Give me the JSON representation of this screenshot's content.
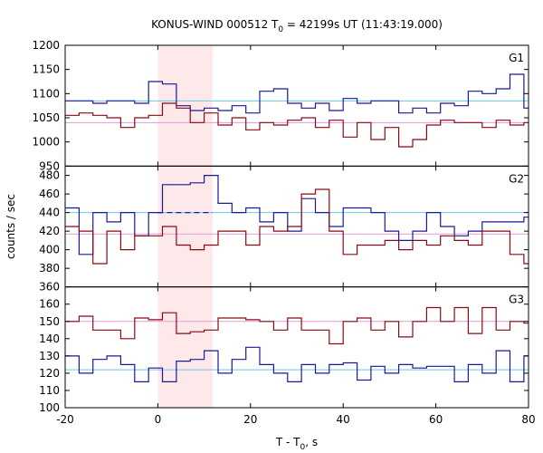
{
  "chart_data": {
    "type": "line",
    "title_main": "KONUS-WIND 000512 T",
    "title_sub": "0",
    "title_rest": " = 42199s UT (11:43:19.000)",
    "xlabel_main": "T - T",
    "xlabel_sub": "0",
    "xlabel_rest": ", s",
    "ylabel": "counts / sec",
    "xlim": [
      -20,
      80
    ],
    "xticks": [
      "-20",
      "0",
      "20",
      "40",
      "60",
      "80"
    ],
    "shaded_interval": [
      0,
      11.8
    ],
    "colors": {
      "bg_series": "#8b0a12",
      "src_series": "#1a1a9a",
      "bg_level": "#e69ad6",
      "src_level": "#6cc6e8",
      "shade": "#fde8ea"
    },
    "panels": [
      {
        "label": "G1",
        "ylim": [
          950,
          1200
        ],
        "yticks": [
          "950",
          "1000",
          "1050",
          "1100",
          "1150",
          "1200"
        ],
        "blue_level": 1085,
        "pink_level": 1040,
        "x_edges": [
          -20,
          -17,
          -14,
          -11,
          -8,
          -5,
          -2,
          1,
          4,
          7,
          10,
          13,
          16,
          19,
          22,
          25,
          28,
          31,
          34,
          37,
          40,
          43,
          46,
          49,
          52,
          55,
          58,
          61,
          64,
          67,
          70,
          73,
          76,
          79,
          80
        ],
        "series": [
          {
            "name": "",
            "color": "#1a1a9a",
            "values": [
              1085,
              1085,
              1080,
              1085,
              1085,
              1080,
              1125,
              1120,
              1075,
              1065,
              1070,
              1065,
              1075,
              1060,
              1105,
              1110,
              1080,
              1070,
              1080,
              1065,
              1090,
              1080,
              1085,
              1085,
              1060,
              1070,
              1060,
              1080,
              1075,
              1105,
              1100,
              1110,
              1140,
              1070
            ]
          },
          {
            "name": "",
            "color": "#8b0a12",
            "values": [
              1055,
              1060,
              1055,
              1050,
              1030,
              1050,
              1055,
              1080,
              1070,
              1040,
              1060,
              1035,
              1050,
              1025,
              1040,
              1035,
              1045,
              1050,
              1030,
              1045,
              1010,
              1040,
              1005,
              1030,
              990,
              1005,
              1035,
              1045,
              1040,
              1040,
              1030,
              1045,
              1035,
              1040
            ]
          }
        ]
      },
      {
        "label": "G2",
        "ylim": [
          360,
          490
        ],
        "yticks": [
          "360",
          "380",
          "400",
          "420",
          "440",
          "460",
          "480"
        ],
        "blue_level": 440,
        "pink_level": 417,
        "dashed_level": 440,
        "dashed_range": [
          0,
          11.8
        ],
        "x_edges": [
          -20,
          -17,
          -14,
          -11,
          -8,
          -5,
          -2,
          1,
          4,
          7,
          10,
          13,
          16,
          19,
          22,
          25,
          28,
          31,
          34,
          37,
          40,
          43,
          46,
          49,
          52,
          55,
          58,
          61,
          64,
          67,
          70,
          73,
          76,
          79,
          80
        ],
        "series": [
          {
            "name": "",
            "color": "#1a1a9a",
            "values": [
              445,
              395,
              440,
              430,
              440,
              415,
              440,
              470,
              470,
              472,
              480,
              450,
              440,
              445,
              430,
              440,
              420,
              455,
              440,
              425,
              445,
              445,
              440,
              420,
              410,
              420,
              440,
              425,
              415,
              420,
              430,
              430,
              430,
              435
            ]
          },
          {
            "name": "",
            "color": "#8b0a12",
            "values": [
              425,
              420,
              385,
              420,
              400,
              415,
              415,
              425,
              405,
              400,
              405,
              420,
              420,
              405,
              425,
              420,
              425,
              460,
              465,
              420,
              395,
              405,
              405,
              410,
              400,
              410,
              405,
              415,
              410,
              405,
              420,
              420,
              395,
              385
            ]
          }
        ]
      },
      {
        "label": "G3",
        "ylim": [
          100,
          170
        ],
        "yticks": [
          "100",
          "110",
          "120",
          "130",
          "140",
          "150",
          "160"
        ],
        "blue_level": 122,
        "pink_level": 150,
        "x_edges": [
          -20,
          -17,
          -14,
          -11,
          -8,
          -5,
          -2,
          1,
          4,
          7,
          10,
          13,
          16,
          19,
          22,
          25,
          28,
          31,
          34,
          37,
          40,
          43,
          46,
          49,
          52,
          55,
          58,
          61,
          64,
          67,
          70,
          73,
          76,
          79,
          80
        ],
        "series": [
          {
            "name": "",
            "color": "#1a1a9a",
            "values": [
              130,
              120,
              128,
              130,
              125,
              115,
              123,
              115,
              127,
              128,
              133,
              120,
              128,
              135,
              125,
              120,
              115,
              125,
              120,
              125,
              126,
              116,
              124,
              120,
              125,
              123,
              124,
              124,
              115,
              125,
              120,
              133,
              115,
              130
            ]
          },
          {
            "name": "",
            "color": "#8b0a12",
            "values": [
              150,
              153,
              145,
              145,
              140,
              152,
              151,
              155,
              143,
              144,
              145,
              152,
              152,
              151,
              150,
              145,
              152,
              145,
              145,
              137,
              150,
              152,
              145,
              150,
              141,
              150,
              158,
              150,
              158,
              143,
              158,
              145,
              150,
              149
            ]
          }
        ]
      }
    ]
  }
}
